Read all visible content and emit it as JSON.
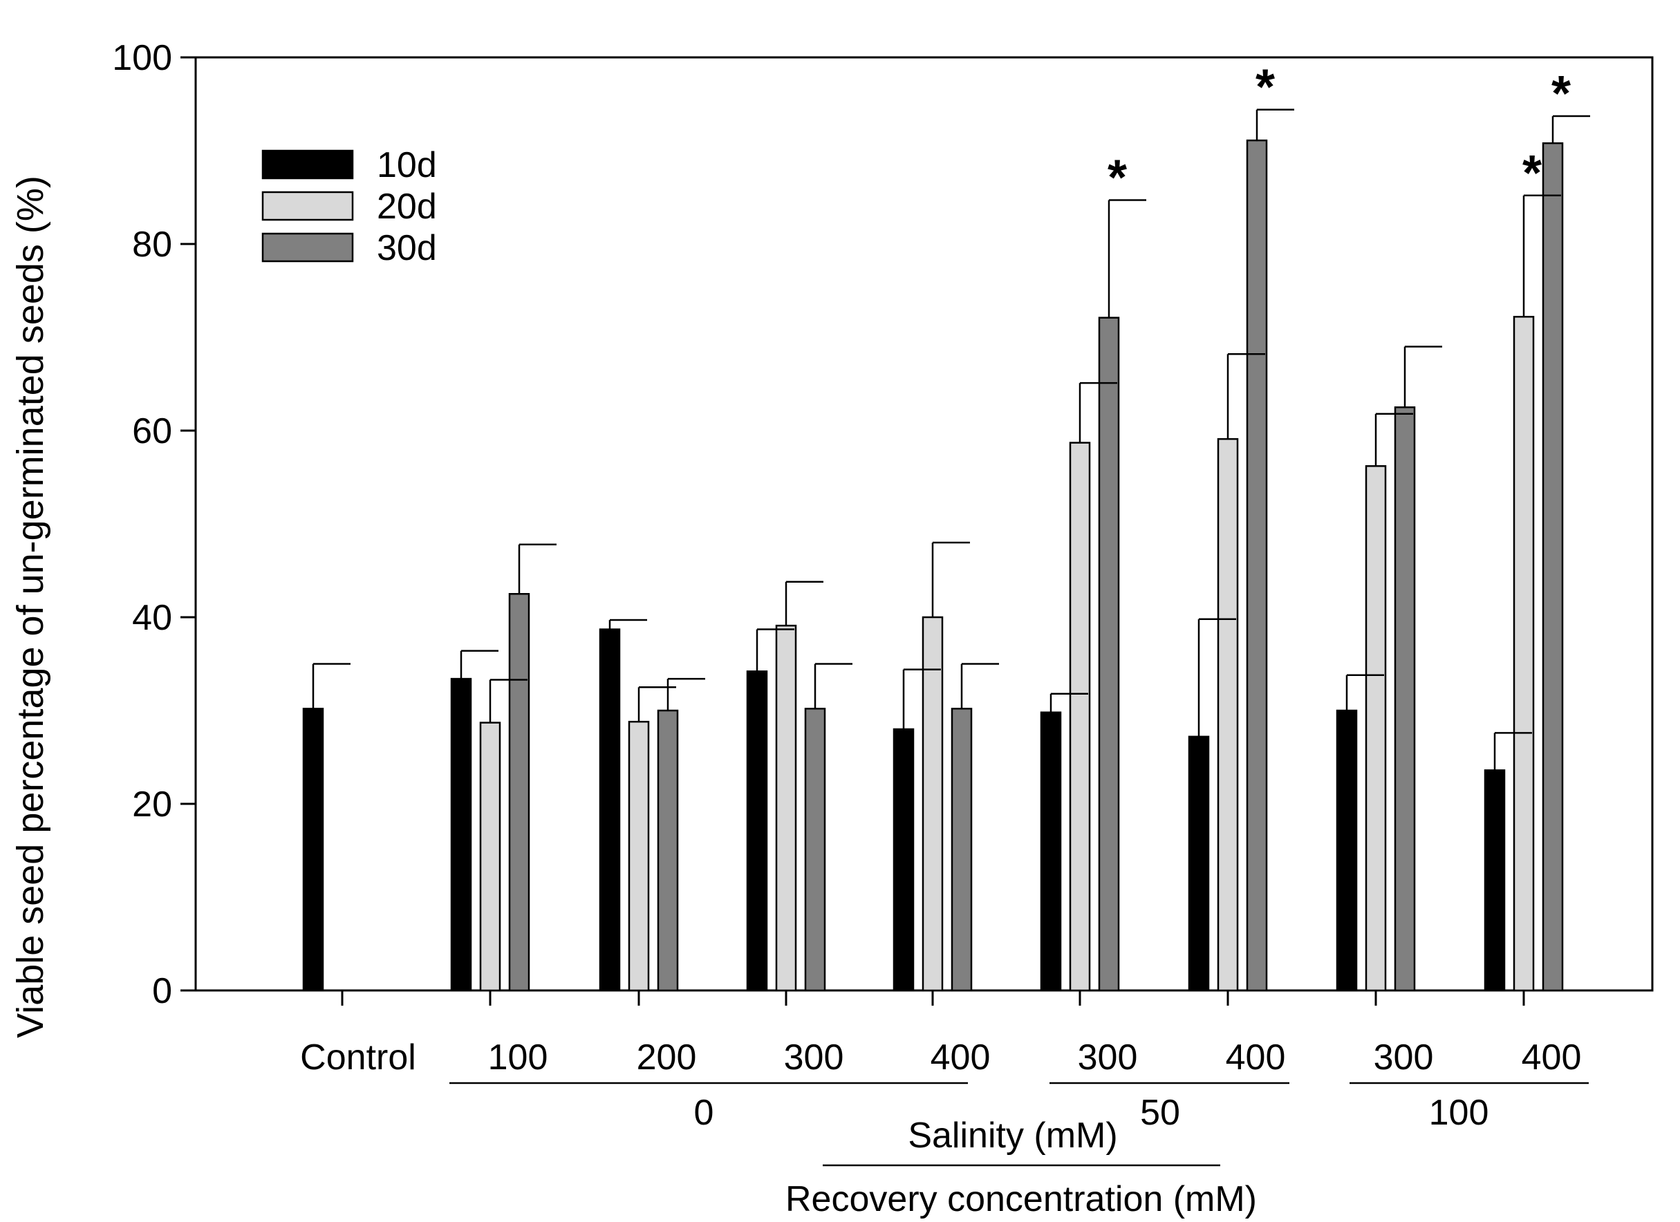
{
  "chart_data": {
    "type": "bar",
    "title": "",
    "ylabel": "Viable seed percentage of un-germinated seeds (%)",
    "ylim": [
      0,
      100
    ],
    "yticks": [
      0,
      20,
      40,
      60,
      80,
      100
    ],
    "categories": [
      "Control",
      "100",
      "200",
      "300",
      "400",
      "300",
      "400",
      "300",
      "400"
    ],
    "series": [
      {
        "name": "10d",
        "color": "#000000",
        "values": [
          30.2,
          33.4,
          38.7,
          34.2,
          28.0,
          29.8,
          27.2,
          30.0,
          23.6
        ],
        "errors": [
          4.8,
          3.0,
          1.0,
          4.5,
          6.4,
          2.0,
          12.6,
          3.8,
          4.0
        ],
        "significant": [
          false,
          false,
          false,
          false,
          false,
          false,
          false,
          false,
          false
        ]
      },
      {
        "name": "20d",
        "color": "#d9d9d9",
        "values": [
          null,
          28.7,
          28.8,
          39.1,
          40.0,
          58.7,
          59.1,
          56.2,
          72.2
        ],
        "errors": [
          null,
          4.6,
          3.7,
          4.7,
          8.0,
          6.4,
          9.1,
          5.6,
          13.0
        ],
        "significant": [
          false,
          false,
          false,
          false,
          false,
          false,
          false,
          false,
          true
        ]
      },
      {
        "name": "30d",
        "color": "#808080",
        "values": [
          null,
          42.5,
          30.0,
          30.2,
          30.2,
          72.1,
          91.1,
          62.5,
          90.8
        ],
        "errors": [
          null,
          5.3,
          3.4,
          4.8,
          4.8,
          12.6,
          3.3,
          6.5,
          2.9
        ],
        "significant": [
          false,
          false,
          false,
          false,
          false,
          true,
          true,
          false,
          true
        ]
      }
    ],
    "group_labels": {
      "recovery_values": [
        "0",
        "50",
        "100"
      ],
      "salinity_label": "Salinity (mM)",
      "recovery_label": "Recovery concentration (mM)"
    },
    "significance_marker": "*",
    "legend": {
      "position": "top-left",
      "entries": [
        "10d",
        "20d",
        "30d"
      ]
    }
  }
}
